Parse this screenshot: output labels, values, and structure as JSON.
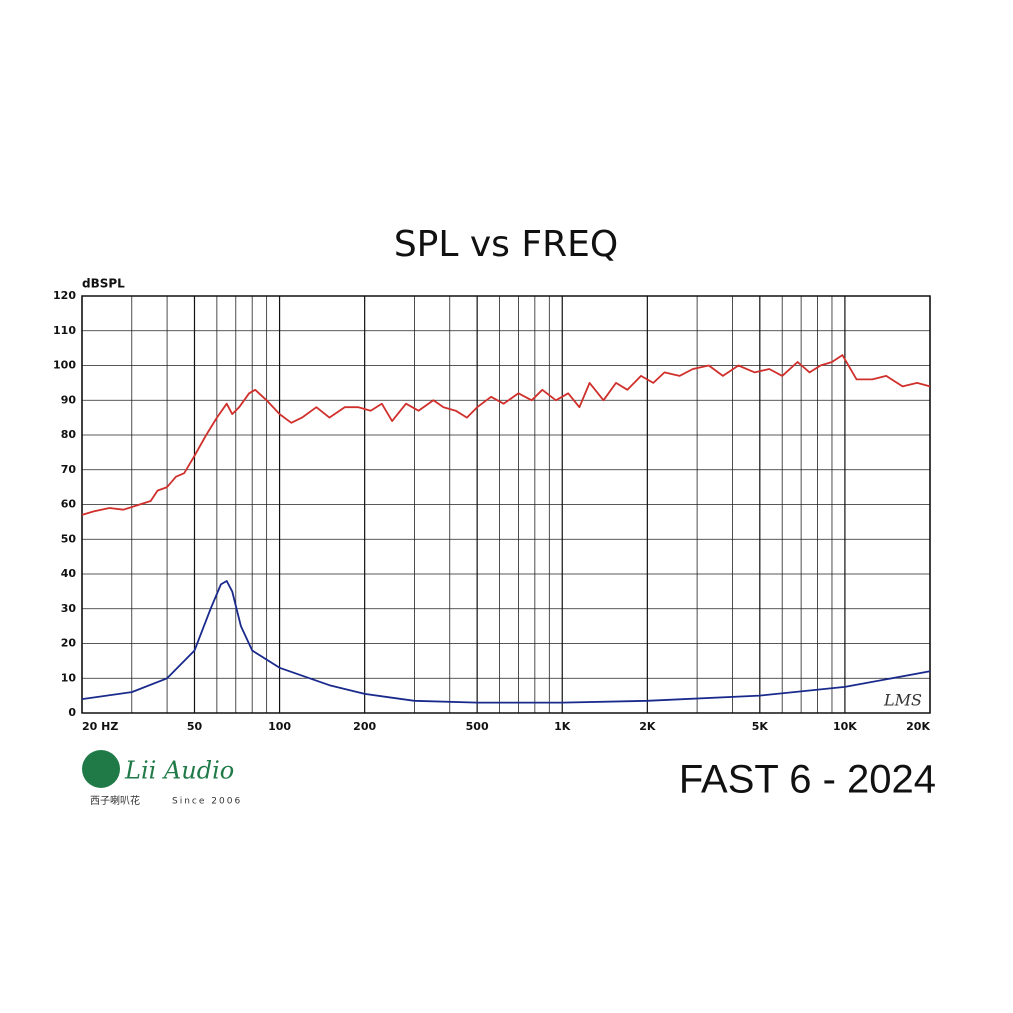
{
  "chart_data": {
    "type": "line",
    "title": "SPL vs FREQ",
    "y_label": "dBSPL",
    "annotation": "LMS",
    "xscale": "log",
    "grid": true,
    "xlim": [
      20,
      20000
    ],
    "ylim": [
      0,
      120
    ],
    "xticks": [
      {
        "value": 20,
        "label": "20 HZ"
      },
      50,
      100,
      200,
      500,
      {
        "value": 1000,
        "label": "1K"
      },
      {
        "value": 2000,
        "label": "2K"
      },
      {
        "value": 5000,
        "label": "5K"
      },
      {
        "value": 10000,
        "label": "10K"
      },
      {
        "value": 20000,
        "label": "20K"
      }
    ],
    "xgrid": [
      30,
      40,
      60,
      70,
      80,
      90,
      300,
      400,
      600,
      700,
      800,
      900,
      3000,
      4000,
      6000,
      7000,
      8000,
      9000
    ],
    "yticks": [
      0,
      10,
      20,
      30,
      40,
      50,
      60,
      70,
      80,
      90,
      100,
      110,
      120
    ],
    "series": [
      {
        "color": "#d0302c",
        "x": [
          20,
          22,
          25,
          28,
          32,
          35,
          37,
          40,
          43,
          46,
          50,
          55,
          60,
          65,
          68,
          72,
          78,
          82,
          90,
          100,
          110,
          120,
          135,
          150,
          170,
          190,
          210,
          230,
          250,
          280,
          310,
          350,
          380,
          420,
          460,
          500,
          560,
          620,
          700,
          780,
          850,
          950,
          1050,
          1150,
          1250,
          1400,
          1550,
          1700,
          1900,
          2100,
          2300,
          2600,
          2900,
          3300,
          3700,
          4200,
          4800,
          5400,
          6000,
          6800,
          7500,
          8200,
          9000,
          9800,
          11000,
          12500,
          14000,
          16000,
          18000,
          20000
        ],
        "values": [
          57,
          58,
          59,
          58.5,
          60,
          61,
          64,
          65,
          68,
          69,
          74,
          80,
          85,
          89,
          86,
          88,
          92,
          93,
          90,
          86,
          83.5,
          85,
          88,
          85,
          88,
          88,
          87,
          89,
          84,
          89,
          87,
          90,
          88,
          87,
          85,
          88,
          91,
          89,
          92,
          90,
          93,
          90,
          92,
          88,
          95,
          90,
          95,
          93,
          97,
          95,
          98,
          97,
          99,
          100,
          97,
          100,
          98,
          99,
          97,
          101,
          98,
          100,
          101,
          103,
          96,
          96,
          97,
          94,
          95,
          94
        ]
      },
      {
        "color": "#1a2a8c",
        "x": [
          20,
          30,
          40,
          50,
          57,
          62,
          65,
          68,
          73,
          80,
          100,
          150,
          200,
          300,
          500,
          1000,
          2000,
          5000,
          10000,
          20000
        ],
        "values": [
          4,
          6,
          10,
          18,
          30,
          37,
          38,
          35,
          25,
          18,
          13,
          8,
          5.5,
          3.5,
          3,
          3,
          3.5,
          5,
          7.5,
          12
        ]
      }
    ]
  },
  "footer": "FAST 6 - 2024",
  "logo": {
    "brand": "Lii Audio",
    "chinese": "西子喇叭花",
    "since": "Since 2006"
  }
}
